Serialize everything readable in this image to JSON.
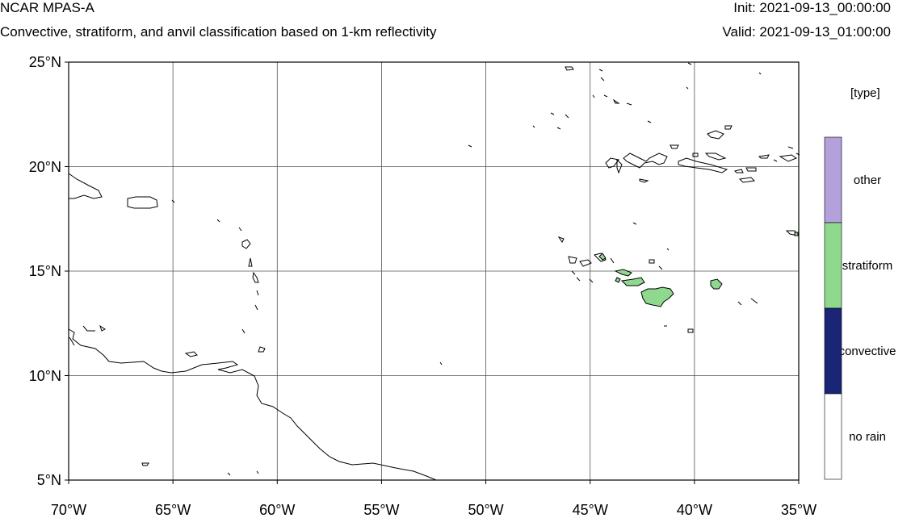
{
  "header": {
    "title": "NCAR MPAS-A",
    "subtitle": "Convective, stratiform, and anvil classification based on 1-km reflectivity",
    "init": "Init: 2021-09-13_00:00:00",
    "valid": "Valid: 2021-09-13_01:00:00"
  },
  "map": {
    "lon_range": [
      -70,
      -35
    ],
    "lat_range": [
      5,
      25
    ],
    "lon_ticks": [
      {
        "value": -70,
        "label": "70°W"
      },
      {
        "value": -65,
        "label": "65°W"
      },
      {
        "value": -60,
        "label": "60°W"
      },
      {
        "value": -55,
        "label": "55°W"
      },
      {
        "value": -50,
        "label": "50°W"
      },
      {
        "value": -45,
        "label": "45°W"
      },
      {
        "value": -40,
        "label": "40°W"
      },
      {
        "value": -35,
        "label": "35°W"
      }
    ],
    "lat_ticks": [
      {
        "value": 25,
        "label": "25°N"
      },
      {
        "value": 20,
        "label": "20°N"
      },
      {
        "value": 15,
        "label": "15°N"
      },
      {
        "value": 10,
        "label": "10°N"
      },
      {
        "value": 5,
        "label": "5°N"
      }
    ],
    "gridlines": true
  },
  "colorbar": {
    "title": "[type]",
    "categories": [
      {
        "label": "other",
        "color": "#b3a1dc"
      },
      {
        "label": "stratiform",
        "color": "#8fd98f"
      },
      {
        "label": "convective",
        "color": "#1a2576"
      },
      {
        "label": "no rain",
        "color": "#ffffff"
      }
    ]
  }
}
